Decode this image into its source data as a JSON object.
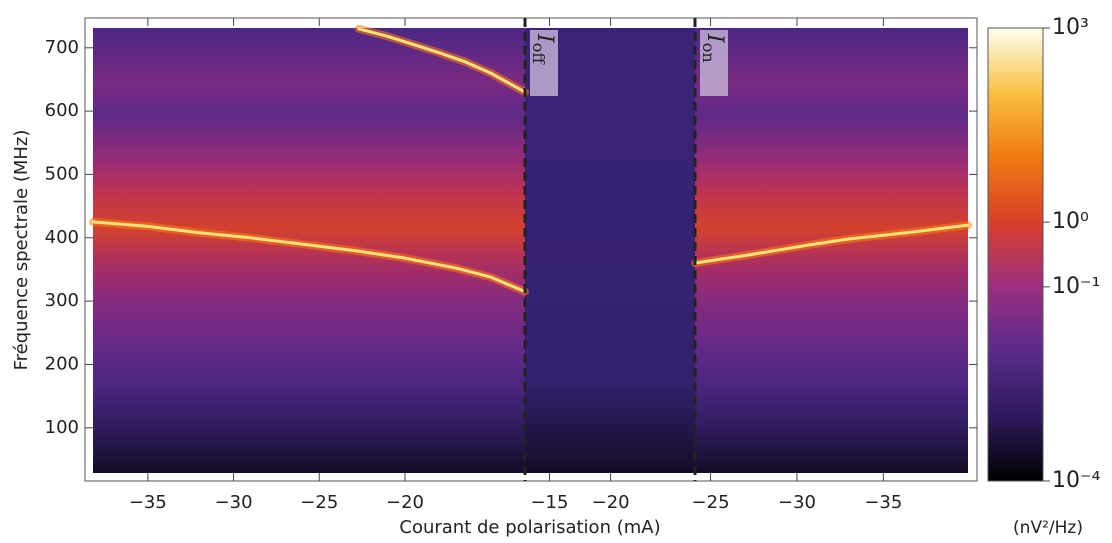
{
  "chart_data": {
    "type": "heatmap",
    "xlabel": "Courant de polarisation (mA)",
    "ylabel": "Fréquence spectrale (MHz)",
    "ylim": [
      16,
      747
    ],
    "yticks": [
      100,
      200,
      300,
      400,
      500,
      600,
      700
    ],
    "panels": [
      {
        "xlim": [
          -38.2,
          -13.0
        ],
        "xticks": [
          -35,
          -30,
          -25,
          -20
        ],
        "series": [
          {
            "x": [
              -38.2,
              -35,
              -32,
              -29,
              -26,
              -23,
              -20,
              -17,
              -15,
              -13
            ],
            "values": [
              425,
              418,
              408,
              400,
              390,
              380,
              368,
              352,
              338,
              315
            ],
            "color": "#ffe27a"
          },
          {
            "x": [
              -22.7,
              -21,
              -19.5,
              -18,
              -16.5,
              -15,
              -13
            ],
            "values": [
              730,
              718,
              705,
              692,
              678,
              660,
              630
            ],
            "color": "#ffe27a"
          }
        ]
      },
      {
        "xlim": [
          -13.0,
          -26.9
        ],
        "xticks": [
          -15,
          -20
        ],
        "series": []
      },
      {
        "xlim": [
          -24.1,
          -39.9
        ],
        "xticks": [
          -25,
          -30,
          -35
        ],
        "series": [
          {
            "x": [
              -24.1,
              -25,
              -27,
              -29,
              -31,
              -33,
              -35,
              -37,
              -39.9
            ],
            "values": [
              360,
              364,
              372,
              381,
              390,
              398,
              404,
              410,
              420
            ],
            "color": "#ffe27a"
          }
        ]
      }
    ],
    "annotations": [
      {
        "text": "I",
        "sub": "off"
      },
      {
        "text": "I",
        "sub": "on"
      }
    ],
    "colorbar": {
      "scale": "log",
      "zlim": [
        0.0001,
        1000
      ],
      "zticks": [
        {
          "value": 1000,
          "label": "10³"
        },
        {
          "value": 1,
          "label": "10⁰"
        },
        {
          "value": 0.1,
          "label": "10⁻¹"
        },
        {
          "value": 0.0001,
          "label": "10⁻⁴"
        }
      ],
      "label": "(nV²/Hz)",
      "colors": [
        "#000000",
        "#2e1a5c",
        "#5a2a8a",
        "#9b2f7f",
        "#d8402a",
        "#f07a10",
        "#f8c040",
        "#fffff0"
      ]
    }
  }
}
